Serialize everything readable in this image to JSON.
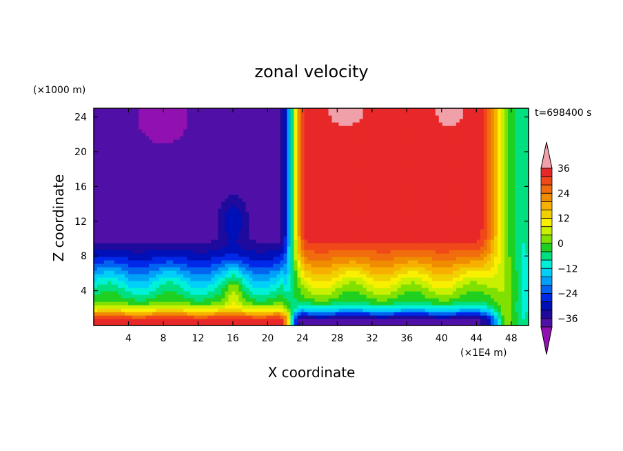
{
  "chart_data": {
    "type": "heatmap",
    "title": "zonal velocity",
    "xlabel": "X coordinate",
    "ylabel": "Z coordinate",
    "x_units": "(×1E4 m)",
    "y_units": "(×1000 m)",
    "time_label": "t=698400 s",
    "xlim": [
      0,
      50
    ],
    "ylim": [
      0,
      25
    ],
    "x_ticks": [
      4,
      8,
      12,
      16,
      20,
      24,
      28,
      32,
      36,
      40,
      44,
      48
    ],
    "y_ticks": [
      4,
      8,
      12,
      16,
      20,
      24
    ],
    "colorbar": {
      "labels": [
        36,
        24,
        12,
        0,
        -12,
        -24,
        -36
      ],
      "levels_top_to_bottom": [
        40,
        36,
        32,
        28,
        24,
        20,
        16,
        12,
        8,
        4,
        0,
        -4,
        -8,
        -12,
        -16,
        -20,
        -24,
        -28,
        -32,
        -36,
        -40
      ],
      "colors_top_to_bottom": [
        "#f0a0a8",
        "#e82828",
        "#f04818",
        "#f06c0c",
        "#f08c00",
        "#f8b000",
        "#f0d000",
        "#f8f000",
        "#c8f000",
        "#80e000",
        "#20d020",
        "#00e080",
        "#00f0d8",
        "#00d0f8",
        "#00a0f8",
        "#0064f0",
        "#0028e8",
        "#0010b8",
        "#1e0a9c",
        "#5010a8",
        "#9010b0"
      ]
    }
  }
}
